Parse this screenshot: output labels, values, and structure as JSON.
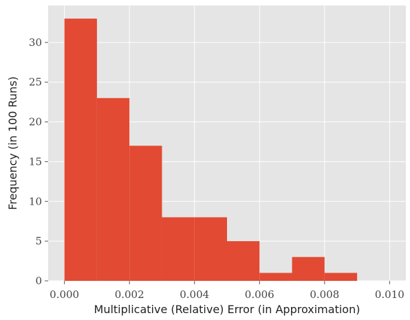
{
  "chart_data": {
    "type": "bar",
    "title": "",
    "xlabel": "Multiplicative (Relative) Error (in Approximation)",
    "ylabel": "Frequency (in 100 Runs)",
    "bin_edges": [
      0.0,
      0.001,
      0.002,
      0.003,
      0.004,
      0.005,
      0.006,
      0.007,
      0.008,
      0.009
    ],
    "values": [
      33,
      23,
      17,
      8,
      8,
      5,
      1,
      3,
      1
    ],
    "xlim": [
      -0.0005,
      0.0105
    ],
    "ylim": [
      0,
      34.65
    ],
    "xticks": [
      0.0,
      0.002,
      0.004,
      0.006,
      0.008,
      0.01
    ],
    "xtick_labels": [
      "0.000",
      "0.002",
      "0.004",
      "0.006",
      "0.008",
      "0.010"
    ],
    "yticks": [
      0,
      5,
      10,
      15,
      20,
      25,
      30
    ],
    "ytick_labels": [
      "0",
      "5",
      "10",
      "15",
      "20",
      "25",
      "30"
    ],
    "grid": true,
    "colors": {
      "bar": "#E24A33",
      "background": "#E5E5E5",
      "grid": "#FFFFFF"
    }
  }
}
